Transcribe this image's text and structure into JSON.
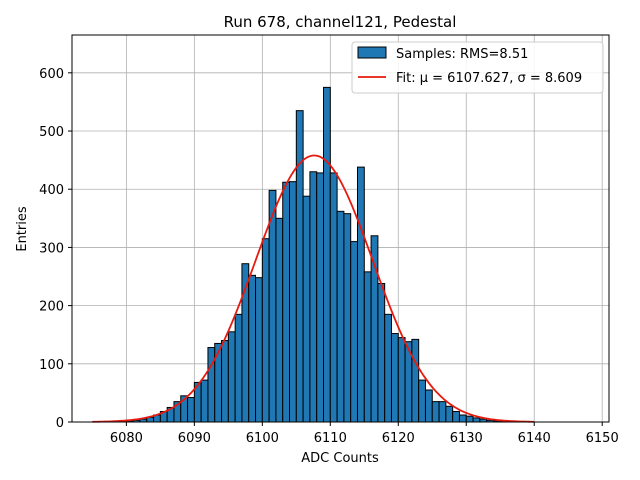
{
  "chart_data": {
    "type": "bar",
    "title": "Run 678, channel121, Pedestal",
    "xlabel": "ADC Counts",
    "ylabel": "Entries",
    "xlim": [
      6072,
      6151
    ],
    "ylim": [
      0,
      665
    ],
    "xticks": [
      6080,
      6090,
      6100,
      6110,
      6120,
      6130,
      6140,
      6150
    ],
    "yticks": [
      0,
      100,
      200,
      300,
      400,
      500,
      600
    ],
    "grid": true,
    "legend_position": "top-right",
    "histogram": {
      "name": "Samples: RMS=8.51",
      "color": "#1f77b4",
      "edge_color": "#000000",
      "bin_width": 1,
      "x": [
        6080,
        6081,
        6082,
        6083,
        6084,
        6085,
        6086,
        6087,
        6088,
        6089,
        6090,
        6091,
        6092,
        6093,
        6094,
        6095,
        6096,
        6097,
        6098,
        6099,
        6100,
        6101,
        6102,
        6103,
        6104,
        6105,
        6106,
        6107,
        6108,
        6109,
        6110,
        6111,
        6112,
        6113,
        6114,
        6115,
        6116,
        6117,
        6118,
        6119,
        6120,
        6121,
        6122,
        6123,
        6124,
        6125,
        6126,
        6127,
        6128,
        6129,
        6130,
        6131,
        6132,
        6133,
        6134,
        6135,
        6136
      ],
      "values": [
        2,
        3,
        5,
        8,
        12,
        18,
        25,
        35,
        45,
        42,
        68,
        72,
        128,
        135,
        140,
        155,
        185,
        272,
        252,
        248,
        315,
        398,
        350,
        412,
        413,
        535,
        388,
        430,
        428,
        575,
        428,
        362,
        358,
        310,
        438,
        258,
        320,
        238,
        185,
        152,
        145,
        138,
        142,
        72,
        55,
        35,
        35,
        27,
        18,
        12,
        10,
        7,
        5,
        3,
        2,
        1,
        1
      ]
    },
    "fit": {
      "name": "Fit: μ = 6107.627, σ = 8.609",
      "color": "#e8190e",
      "mu": 6107.627,
      "sigma": 8.609,
      "amplitude": 458,
      "x_range": [
        6075,
        6140
      ]
    }
  }
}
